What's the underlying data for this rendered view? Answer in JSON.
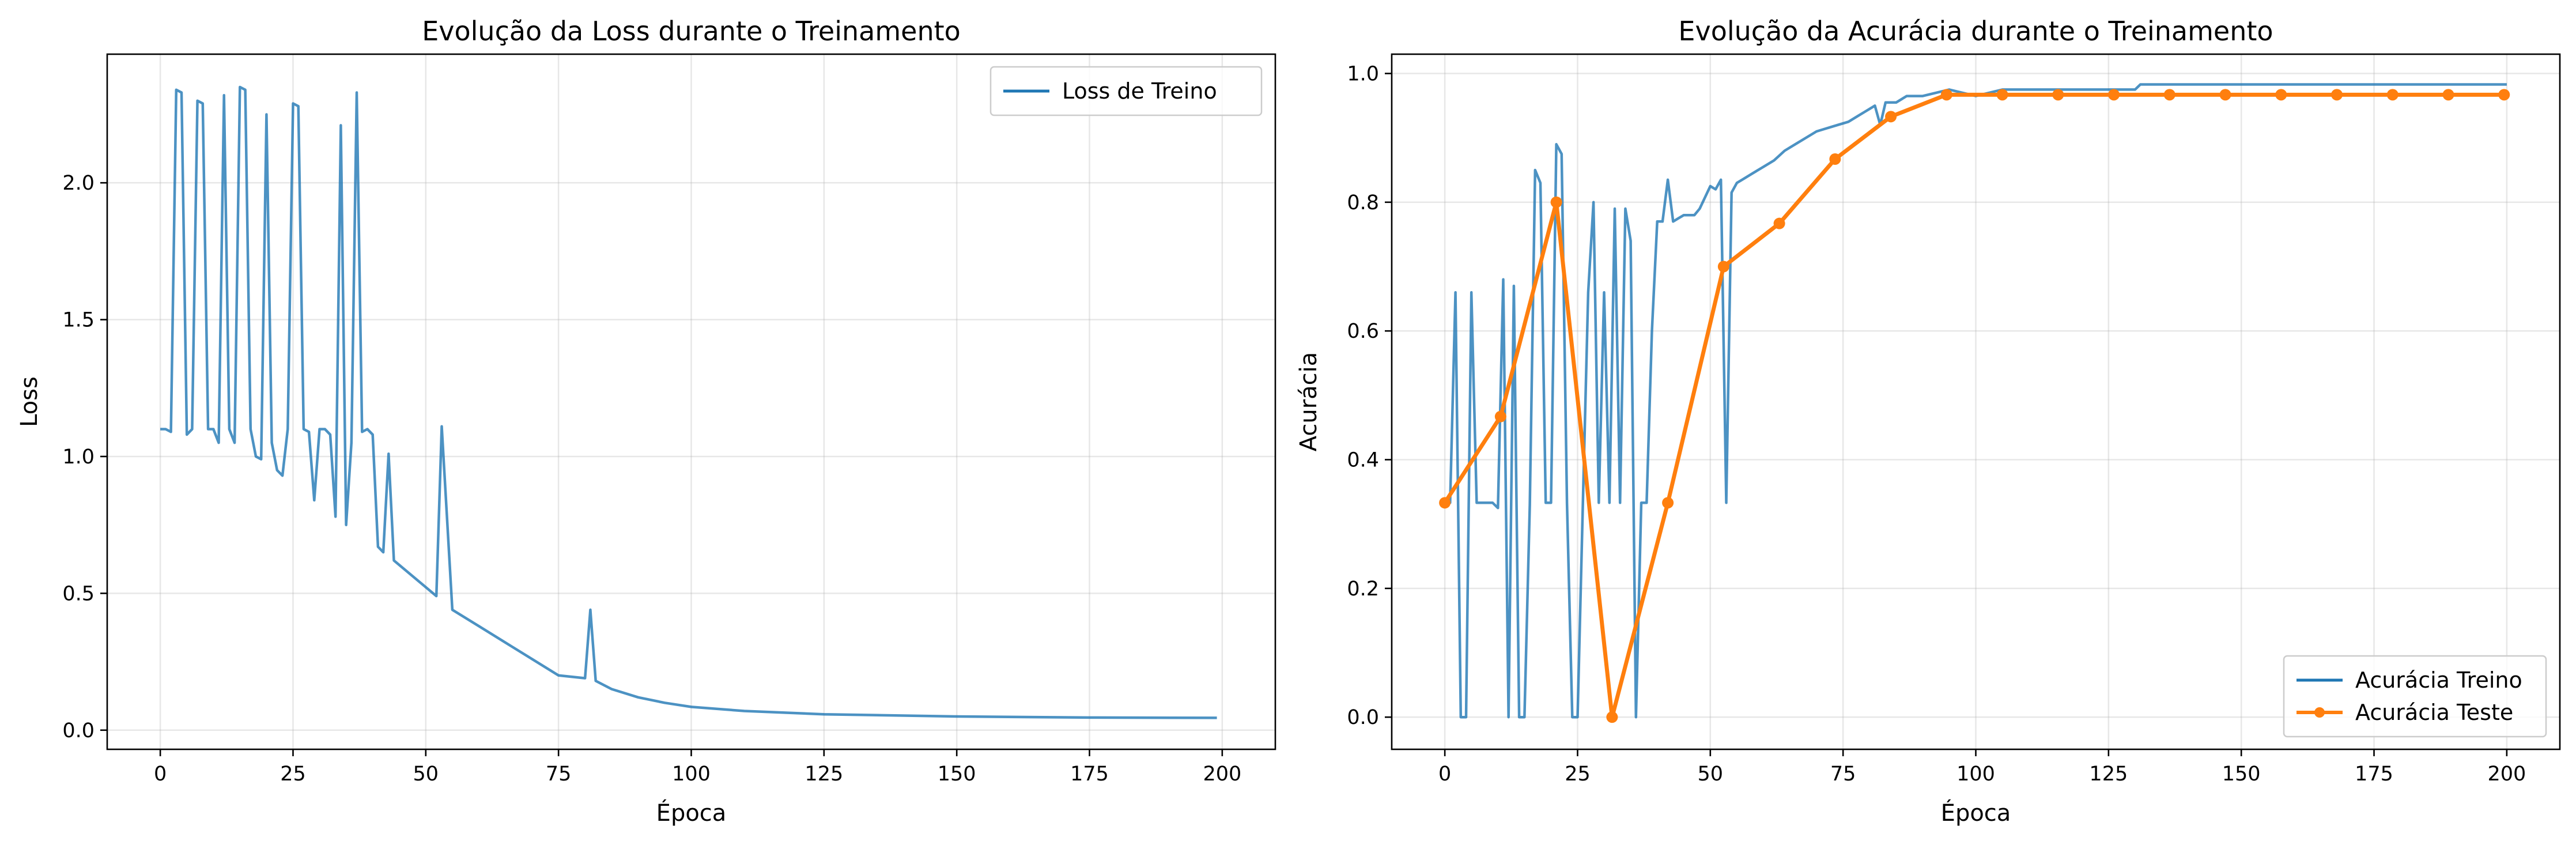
{
  "chart_data": [
    {
      "type": "line",
      "title": "Evolução da Loss durante o Treinamento",
      "xlabel": "Época",
      "ylabel": "Loss",
      "xlim": [
        -10,
        210
      ],
      "ylim": [
        -0.07,
        2.47
      ],
      "xticks": [
        0,
        25,
        50,
        75,
        100,
        125,
        150,
        175,
        200
      ],
      "yticks": [
        0.0,
        0.5,
        1.0,
        1.5,
        2.0
      ],
      "grid": true,
      "legend": "top-right",
      "series": [
        {
          "name": "Loss de Treino",
          "color": "#1f77b4",
          "x": [
            0,
            1,
            2,
            3,
            4,
            5,
            6,
            7,
            8,
            9,
            10,
            11,
            12,
            13,
            14,
            15,
            16,
            17,
            18,
            19,
            20,
            21,
            22,
            23,
            24,
            25,
            26,
            27,
            28,
            29,
            30,
            31,
            32,
            33,
            34,
            35,
            36,
            37,
            38,
            39,
            40,
            41,
            42,
            43,
            44,
            52,
            53,
            55,
            60,
            65,
            70,
            75,
            80,
            81,
            82,
            85,
            90,
            95,
            100,
            110,
            125,
            150,
            175,
            199
          ],
          "y": [
            1.1,
            1.1,
            1.09,
            2.34,
            2.33,
            1.08,
            1.1,
            2.3,
            2.29,
            1.1,
            1.1,
            1.05,
            2.32,
            1.1,
            1.05,
            2.35,
            2.34,
            1.1,
            1.0,
            0.99,
            2.25,
            1.05,
            0.95,
            0.93,
            1.1,
            2.29,
            2.28,
            1.1,
            1.09,
            0.84,
            1.1,
            1.1,
            1.08,
            0.78,
            2.21,
            0.75,
            1.05,
            2.33,
            1.09,
            1.1,
            1.08,
            0.67,
            0.65,
            1.01,
            0.62,
            0.49,
            1.11,
            0.44,
            0.38,
            0.32,
            0.26,
            0.2,
            0.19,
            0.44,
            0.18,
            0.15,
            0.12,
            0.1,
            0.085,
            0.07,
            0.058,
            0.05,
            0.046,
            0.045
          ]
        }
      ]
    },
    {
      "type": "line",
      "title": "Evolução da Acurácia durante o Treinamento",
      "xlabel": "Época",
      "ylabel": "Acurácia",
      "xlim": [
        -10,
        210
      ],
      "ylim": [
        -0.05,
        1.03
      ],
      "xticks": [
        0,
        25,
        50,
        75,
        100,
        125,
        150,
        175,
        200
      ],
      "yticks": [
        0.0,
        0.2,
        0.4,
        0.6,
        0.8,
        1.0
      ],
      "grid": true,
      "legend": "bottom-right",
      "series": [
        {
          "name": "Acurácia Treino",
          "color": "#1f77b4",
          "x": [
            0,
            1,
            2,
            3,
            4,
            5,
            6,
            7,
            8,
            9,
            10,
            11,
            12,
            13,
            14,
            15,
            16,
            17,
            18,
            19,
            20,
            21,
            22,
            23,
            24,
            25,
            26,
            27,
            28,
            29,
            30,
            31,
            32,
            33,
            34,
            35,
            36,
            37,
            38,
            39,
            40,
            41,
            42,
            43,
            44,
            45,
            47,
            48,
            50,
            51,
            52,
            53,
            54,
            55,
            56,
            58,
            60,
            62,
            64,
            66,
            70,
            72,
            74,
            76,
            78,
            79,
            80,
            81,
            82,
            83,
            85,
            87,
            90,
            95,
            100,
            105,
            110,
            120,
            130,
            131,
            140,
            160,
            180,
            200
          ],
          "y": [
            0.333,
            0.333,
            0.66,
            0.0,
            0.0,
            0.66,
            0.333,
            0.333,
            0.333,
            0.333,
            0.325,
            0.68,
            0.0,
            0.67,
            0.0,
            0.0,
            0.33,
            0.85,
            0.83,
            0.333,
            0.333,
            0.89,
            0.875,
            0.333,
            0.0,
            0.0,
            0.333,
            0.66,
            0.8,
            0.333,
            0.66,
            0.333,
            0.79,
            0.333,
            0.79,
            0.74,
            0.0,
            0.333,
            0.333,
            0.6,
            0.77,
            0.77,
            0.835,
            0.77,
            0.775,
            0.78,
            0.78,
            0.79,
            0.825,
            0.82,
            0.835,
            0.333,
            0.815,
            0.83,
            0.835,
            0.845,
            0.855,
            0.865,
            0.88,
            0.89,
            0.91,
            0.915,
            0.92,
            0.925,
            0.935,
            0.94,
            0.945,
            0.95,
            0.92,
            0.955,
            0.955,
            0.965,
            0.965,
            0.975,
            0.965,
            0.975,
            0.975,
            0.975,
            0.975,
            0.983,
            0.983,
            0.983,
            0.983,
            0.983
          ]
        },
        {
          "name": "Acurácia Teste",
          "color": "#ff7f0e",
          "x": [
            0,
            10.5,
            21,
            31.5,
            42,
            52.5,
            63,
            73.5,
            84,
            94.5,
            105,
            115.5,
            126,
            136.5,
            147,
            157.5,
            168,
            178.5,
            189,
            199.5
          ],
          "y": [
            0.333,
            0.467,
            0.8,
            0.0,
            0.333,
            0.7,
            0.767,
            0.867,
            0.933,
            0.967,
            0.967,
            0.967,
            0.967,
            0.967,
            0.967,
            0.967,
            0.967,
            0.967,
            0.967,
            0.967
          ]
        }
      ]
    }
  ]
}
